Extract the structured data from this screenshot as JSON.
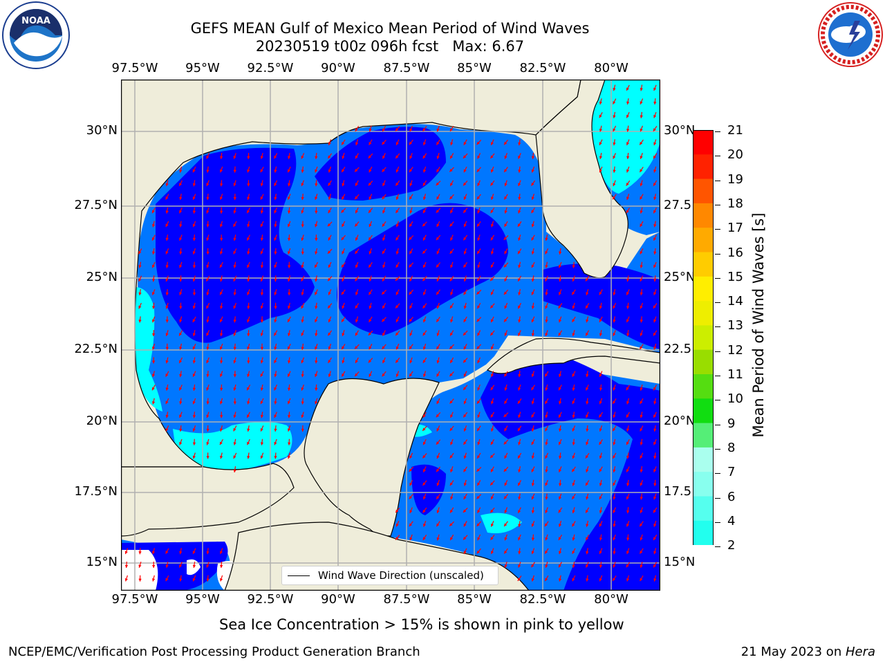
{
  "title": {
    "line1": "GEFS MEAN Gulf of Mexico Mean Period of Wind Waves",
    "line2": "20230519 t00z 096h fcst   Max: 6.67"
  },
  "lon_ticks": [
    "97.5°W",
    "95°W",
    "92.5°W",
    "90°W",
    "87.5°W",
    "85°W",
    "82.5°W",
    "80°W"
  ],
  "lat_ticks_left": [
    "30°N",
    "27.5°N",
    "25°N",
    "22.5°N",
    "20°N",
    "17.5°N",
    "15°N"
  ],
  "lat_ticks_right": [
    "30°N",
    "27.5",
    "25°N",
    "22.5",
    "20°N",
    "17.5",
    "15°N"
  ],
  "legend": {
    "label": "Wind Wave Direction (unscaled)"
  },
  "colorbar": {
    "label": "Mean Period of Wind Waves [s]",
    "ticks": [
      "2",
      "4",
      "6",
      "7",
      "8",
      "9",
      "10",
      "11",
      "12",
      "13",
      "14",
      "15",
      "16",
      "17",
      "18",
      "19",
      "20",
      "21"
    ],
    "colors": [
      "#0055ff",
      "#00ccff",
      "#22ffee",
      "#55ffee",
      "#88ffee",
      "#aaffee",
      "#55ee77",
      "#11dd11",
      "#55dd11",
      "#99dd00",
      "#ccee00",
      "#eeee00",
      "#ffee00",
      "#ffcc00",
      "#ffaa00",
      "#ff8800",
      "#ff5500",
      "#ff2200",
      "#ff0000"
    ],
    "under_color": "#0000ff"
  },
  "colors": {
    "land": "#efedda",
    "water_low": "#0000ff",
    "water_mid": "#0077ff",
    "water_cyan": "#00ffff",
    "arrow": "#ff0000",
    "grid": "#b0b0b0"
  },
  "subtitle": "Sea Ice Concentration > 15% is shown in pink to yellow",
  "footer_left": "NCEP/EMC/Verification Post Processing Product Generation Branch",
  "footer_right_prefix": "21 May 2023 on ",
  "footer_right_italic": "Hera",
  "logos": {
    "noaa": {
      "text": "NOAA",
      "ring_text": "NATIONAL OCEANIC AND ATMOSPHERIC ADMINISTRATION · U.S. DEPARTMENT OF COMMERCE"
    },
    "nws": {
      "ring_text": "NATIONAL WEATHER SERVICE"
    }
  }
}
